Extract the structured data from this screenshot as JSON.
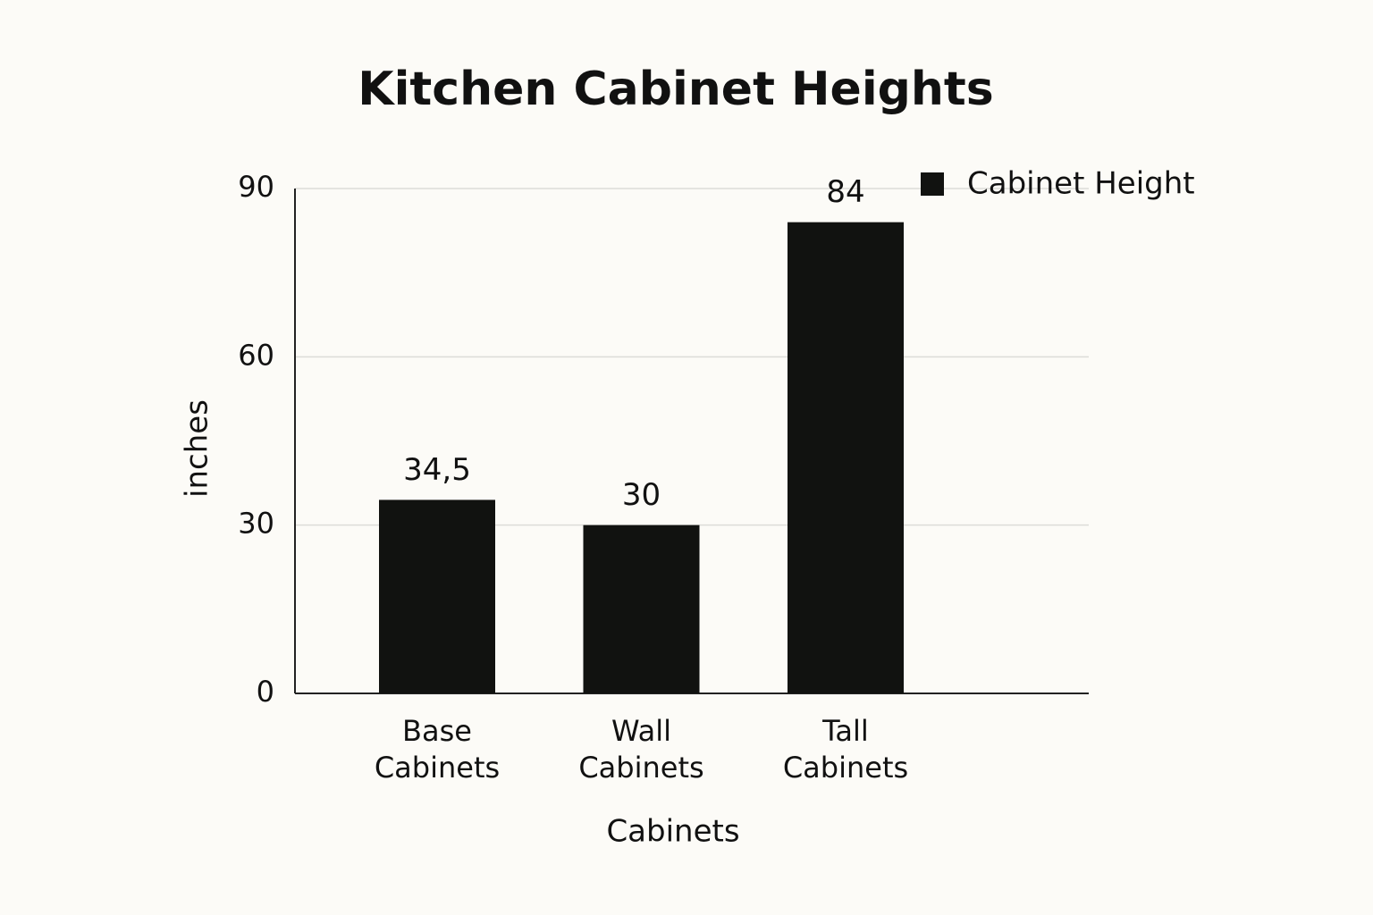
{
  "chart_data": {
    "type": "bar",
    "title": "Kitchen Cabinet Heights",
    "x_label": "Cabinets",
    "y_label": "inches",
    "categories": [
      "Base Cabinets",
      "Wall Cabinets",
      "Tall Cabinets"
    ],
    "series": [
      {
        "name": "Cabinet Height",
        "color": "#111210",
        "values": [
          34.5,
          30,
          84
        ],
        "value_labels": [
          "34,5",
          "30",
          "84"
        ]
      }
    ],
    "ylim": [
      0,
      90
    ],
    "yticks": [
      0,
      30,
      60,
      90
    ],
    "grid": true,
    "legend": "top-right"
  }
}
